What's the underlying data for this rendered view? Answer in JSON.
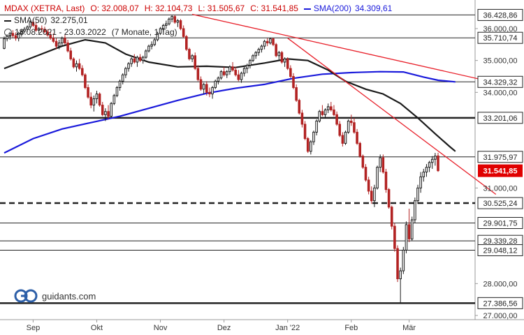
{
  "legend": {
    "symbol": "MDAX (XETRA, Last)",
    "open": "O: 32.008,07",
    "high": "H: 32.104,73",
    "low": "L: 31.505,67",
    "close": "C: 31.541,85",
    "sma200_label": "SMA(200)",
    "sma200_value": "34.309,61",
    "sma50_label": "SMA(50)",
    "sma50_value": "32.275,01",
    "range": "18.08.2021 - 23.03.2022",
    "period": "(7 Monate, 1 Tag)"
  },
  "logo_text": "guidants.com",
  "colors": {
    "up": "#1a1a1a",
    "down": "#b22222",
    "sma50": "#1a1a1a",
    "sma200": "#1a1adb",
    "trendline": "#e8202a",
    "last_price": "#e00000"
  },
  "chart_data": {
    "type": "candlestick",
    "ylim": [
      26900,
      36700
    ],
    "y_ticks": [
      {
        "value": 36000,
        "label": "36.000,00"
      },
      {
        "value": 35000,
        "label": "35.000,00"
      },
      {
        "value": 34000,
        "label": "34.000,00"
      },
      {
        "value": 31000,
        "label": "31.000,00"
      },
      {
        "value": 28000,
        "label": "28.000,00"
      },
      {
        "value": 27000,
        "label": "27.000,00"
      }
    ],
    "x_ticks": [
      {
        "index": 10,
        "label": "Sep"
      },
      {
        "index": 32,
        "label": "Okt"
      },
      {
        "index": 54,
        "label": "Nov"
      },
      {
        "index": 76,
        "label": "Dez"
      },
      {
        "index": 98,
        "label": "Jan '22"
      },
      {
        "index": 120,
        "label": "Feb"
      },
      {
        "index": 140,
        "label": "Mär"
      }
    ],
    "levels": [
      {
        "value": 36428.86,
        "label": "36.428,86",
        "style": "solid",
        "weight": "thin"
      },
      {
        "value": 35710.74,
        "label": "35.710,74",
        "style": "solid",
        "weight": "thin"
      },
      {
        "value": 34329.32,
        "label": "34.329,32",
        "style": "solid",
        "weight": "thin"
      },
      {
        "value": 33201.06,
        "label": "33.201,06",
        "style": "solid",
        "weight": "thick"
      },
      {
        "value": 31975.97,
        "label": "31.975,97",
        "style": "solid",
        "weight": "thin"
      },
      {
        "value": 30525.24,
        "label": "30.525,24",
        "style": "dashed",
        "weight": "thick"
      },
      {
        "value": 29901.75,
        "label": "29.901,75",
        "style": "solid",
        "weight": "thin"
      },
      {
        "value": 29339.28,
        "label": "29.339,28",
        "style": "solid",
        "weight": "thin"
      },
      {
        "value": 29048.12,
        "label": "29.048,12",
        "style": "solid",
        "weight": "thin"
      },
      {
        "value": 27386.56,
        "label": "27.386,56",
        "style": "solid",
        "weight": "thick"
      }
    ],
    "last_price": {
      "value": 31541.85,
      "label": "31.541,85"
    },
    "trendlines": [
      {
        "from": [
          65,
          36450
        ],
        "to": [
          170,
          34300
        ]
      },
      {
        "from": [
          98,
          35700
        ],
        "to": [
          170,
          30800
        ]
      }
    ],
    "sma50": [
      [
        0,
        34750
      ],
      [
        10,
        35100
      ],
      [
        20,
        35450
      ],
      [
        28,
        35650
      ],
      [
        35,
        35550
      ],
      [
        42,
        35200
      ],
      [
        50,
        34950
      ],
      [
        60,
        34800
      ],
      [
        70,
        34820
      ],
      [
        80,
        34780
      ],
      [
        90,
        34920
      ],
      [
        98,
        35050
      ],
      [
        105,
        35000
      ],
      [
        112,
        34700
      ],
      [
        118,
        34350
      ],
      [
        125,
        34100
      ],
      [
        131,
        33950
      ],
      [
        137,
        33650
      ],
      [
        143,
        33200
      ],
      [
        149,
        32700
      ],
      [
        154,
        32300
      ],
      [
        156,
        32150
      ]
    ],
    "sma200": [
      [
        0,
        32100
      ],
      [
        10,
        32550
      ],
      [
        20,
        32850
      ],
      [
        30,
        33050
      ],
      [
        40,
        33250
      ],
      [
        50,
        33500
      ],
      [
        60,
        33750
      ],
      [
        70,
        33970
      ],
      [
        80,
        34130
      ],
      [
        90,
        34250
      ],
      [
        100,
        34440
      ],
      [
        110,
        34570
      ],
      [
        120,
        34620
      ],
      [
        130,
        34650
      ],
      [
        138,
        34640
      ],
      [
        145,
        34480
      ],
      [
        150,
        34380
      ],
      [
        156,
        34330
      ]
    ],
    "candles": [
      [
        35380,
        35750,
        35350,
        35680
      ],
      [
        35680,
        35820,
        35600,
        35760
      ],
      [
        35760,
        35900,
        35650,
        35850
      ],
      [
        35850,
        35950,
        35720,
        35780
      ],
      [
        35780,
        35880,
        35620,
        35700
      ],
      [
        35700,
        35900,
        35600,
        35850
      ],
      [
        35850,
        35980,
        35750,
        35920
      ],
      [
        35920,
        36050,
        35850,
        35980
      ],
      [
        35980,
        36100,
        35900,
        36050
      ],
      [
        36050,
        36250,
        35980,
        36200
      ],
      [
        36200,
        36300,
        36050,
        36100
      ],
      [
        36100,
        36180,
        35900,
        35950
      ],
      [
        35950,
        36050,
        35850,
        36000
      ],
      [
        36000,
        36100,
        35900,
        35980
      ],
      [
        35980,
        36060,
        35850,
        35900
      ],
      [
        35900,
        35980,
        35750,
        35800
      ],
      [
        35800,
        35900,
        35650,
        35700
      ],
      [
        35700,
        35850,
        35550,
        35600
      ],
      [
        35600,
        35700,
        35350,
        35450
      ],
      [
        35450,
        35650,
        35350,
        35550
      ],
      [
        35550,
        35750,
        35450,
        35700
      ],
      [
        35700,
        35800,
        35500,
        35550
      ],
      [
        35550,
        35650,
        35250,
        35300
      ],
      [
        35300,
        35400,
        35000,
        35050
      ],
      [
        35050,
        35100,
        34750,
        34800
      ],
      [
        34800,
        35000,
        34650,
        34900
      ],
      [
        34900,
        35050,
        34700,
        34750
      ],
      [
        34750,
        34850,
        34500,
        34550
      ],
      [
        34550,
        34600,
        34100,
        34150
      ],
      [
        34150,
        34250,
        33800,
        33850
      ],
      [
        33850,
        34000,
        33500,
        33600
      ],
      [
        33600,
        33900,
        33400,
        33800
      ],
      [
        33800,
        34050,
        33650,
        33950
      ],
      [
        33950,
        34000,
        33550,
        33600
      ],
      [
        33600,
        33700,
        33250,
        33300
      ],
      [
        33300,
        33500,
        33100,
        33400
      ],
      [
        33400,
        33600,
        33150,
        33250
      ],
      [
        33250,
        33700,
        33200,
        33650
      ],
      [
        33650,
        33950,
        33600,
        33900
      ],
      [
        33900,
        34200,
        33850,
        34150
      ],
      [
        34150,
        34400,
        34050,
        34350
      ],
      [
        34350,
        34600,
        34250,
        34550
      ],
      [
        34550,
        34800,
        34450,
        34750
      ],
      [
        34750,
        34950,
        34650,
        34900
      ],
      [
        34900,
        35100,
        34800,
        35050
      ],
      [
        35050,
        35200,
        34900,
        34950
      ],
      [
        34950,
        35150,
        34800,
        35100
      ],
      [
        35100,
        35200,
        34950,
        35000
      ],
      [
        35000,
        35150,
        34900,
        35100
      ],
      [
        35100,
        35350,
        35050,
        35300
      ],
      [
        35300,
        35500,
        35250,
        35450
      ],
      [
        35450,
        35600,
        35350,
        35500
      ],
      [
        35500,
        35700,
        35450,
        35650
      ],
      [
        35650,
        35900,
        35600,
        35850
      ],
      [
        35850,
        36050,
        35800,
        36000
      ],
      [
        36000,
        36150,
        35900,
        36100
      ],
      [
        36100,
        36250,
        36000,
        36150
      ],
      [
        36150,
        36350,
        36100,
        36300
      ],
      [
        36300,
        36420,
        36200,
        36380
      ],
      [
        36380,
        36430,
        36150,
        36200
      ],
      [
        36200,
        36300,
        36050,
        36250
      ],
      [
        36250,
        36300,
        35950,
        36000
      ],
      [
        36000,
        36100,
        35700,
        35750
      ],
      [
        35750,
        35800,
        35300,
        35350
      ],
      [
        35350,
        35400,
        35000,
        35050
      ],
      [
        35050,
        35200,
        34950,
        35150
      ],
      [
        35150,
        35250,
        34700,
        34750
      ],
      [
        34750,
        34850,
        34350,
        34400
      ],
      [
        34400,
        34500,
        34050,
        34100
      ],
      [
        34100,
        34300,
        33950,
        34250
      ],
      [
        34250,
        34350,
        33900,
        34000
      ],
      [
        34000,
        34150,
        33850,
        33950
      ],
      [
        33950,
        34200,
        33800,
        34150
      ],
      [
        34150,
        34400,
        34100,
        34350
      ],
      [
        34350,
        34500,
        34250,
        34450
      ],
      [
        34450,
        34700,
        34400,
        34650
      ],
      [
        34650,
        34800,
        34500,
        34550
      ],
      [
        34550,
        34700,
        34450,
        34650
      ],
      [
        34650,
        34850,
        34550,
        34800
      ],
      [
        34800,
        34950,
        34650,
        34700
      ],
      [
        34700,
        34800,
        34500,
        34550
      ],
      [
        34550,
        34700,
        34350,
        34400
      ],
      [
        34400,
        34650,
        34300,
        34600
      ],
      [
        34600,
        34800,
        34500,
        34750
      ],
      [
        34750,
        34900,
        34600,
        34850
      ],
      [
        34850,
        35050,
        34750,
        35000
      ],
      [
        35000,
        35200,
        34950,
        35150
      ],
      [
        35150,
        35300,
        35050,
        35250
      ],
      [
        35250,
        35400,
        35150,
        35350
      ],
      [
        35350,
        35500,
        35250,
        35450
      ],
      [
        35450,
        35650,
        35350,
        35600
      ],
      [
        35600,
        35700,
        35450,
        35550
      ],
      [
        35550,
        35720,
        35500,
        35680
      ],
      [
        35680,
        35710,
        35450,
        35500
      ],
      [
        35500,
        35550,
        35100,
        35150
      ],
      [
        35150,
        35300,
        35000,
        35250
      ],
      [
        35250,
        35300,
        34900,
        34950
      ],
      [
        34950,
        35100,
        34800,
        35050
      ],
      [
        35050,
        35100,
        34700,
        34750
      ],
      [
        34750,
        34850,
        34450,
        34500
      ],
      [
        34500,
        34600,
        34100,
        34150
      ],
      [
        34150,
        34250,
        33700,
        33750
      ],
      [
        33750,
        33800,
        33300,
        33350
      ],
      [
        33350,
        33450,
        32900,
        33000
      ],
      [
        33000,
        33100,
        32500,
        32550
      ],
      [
        32550,
        32600,
        32100,
        32150
      ],
      [
        32150,
        32500,
        32050,
        32450
      ],
      [
        32450,
        32800,
        32350,
        32750
      ],
      [
        32750,
        33150,
        32650,
        33100
      ],
      [
        33100,
        33450,
        33050,
        33400
      ],
      [
        33400,
        33600,
        33250,
        33300
      ],
      [
        33300,
        33500,
        33200,
        33450
      ],
      [
        33450,
        33650,
        33350,
        33550
      ],
      [
        33550,
        33700,
        33400,
        33450
      ],
      [
        33450,
        33600,
        33250,
        33300
      ],
      [
        33300,
        33400,
        32950,
        33000
      ],
      [
        33000,
        33100,
        32600,
        32650
      ],
      [
        32650,
        32750,
        32300,
        32400
      ],
      [
        32400,
        32800,
        32350,
        32750
      ],
      [
        32750,
        33150,
        32700,
        33100
      ],
      [
        33100,
        33300,
        32950,
        33050
      ],
      [
        33050,
        33200,
        32700,
        32750
      ],
      [
        32750,
        32850,
        32350,
        32400
      ],
      [
        32400,
        32450,
        31950,
        32000
      ],
      [
        32000,
        32050,
        31600,
        31650
      ],
      [
        31650,
        31750,
        31200,
        31250
      ],
      [
        31250,
        31350,
        30800,
        30900
      ],
      [
        30900,
        31050,
        30500,
        30600
      ],
      [
        30600,
        31100,
        30400,
        31000
      ],
      [
        31000,
        31700,
        30950,
        31650
      ],
      [
        31650,
        32050,
        31500,
        31950
      ],
      [
        31950,
        32050,
        31450,
        31500
      ],
      [
        31500,
        31600,
        30850,
        30950
      ],
      [
        30950,
        31000,
        30350,
        30400
      ],
      [
        30400,
        30450,
        29700,
        29800
      ],
      [
        29800,
        29900,
        29000,
        29100
      ],
      [
        29100,
        29200,
        28050,
        28150
      ],
      [
        28150,
        28500,
        27386,
        28400
      ],
      [
        28400,
        29150,
        28300,
        29050
      ],
      [
        29050,
        29950,
        28950,
        29850
      ],
      [
        29850,
        30350,
        29300,
        29400
      ],
      [
        29400,
        30100,
        29350,
        30000
      ],
      [
        30000,
        30700,
        29900,
        30600
      ],
      [
        30600,
        31100,
        30500,
        31000
      ],
      [
        31000,
        31500,
        30850,
        31350
      ],
      [
        31350,
        31600,
        31200,
        31500
      ],
      [
        31500,
        31750,
        31350,
        31650
      ],
      [
        31650,
        31850,
        31500,
        31800
      ],
      [
        31800,
        32000,
        31600,
        31900
      ],
      [
        31900,
        32100,
        31700,
        32000
      ],
      [
        32008,
        32105,
        31506,
        31542
      ]
    ]
  }
}
